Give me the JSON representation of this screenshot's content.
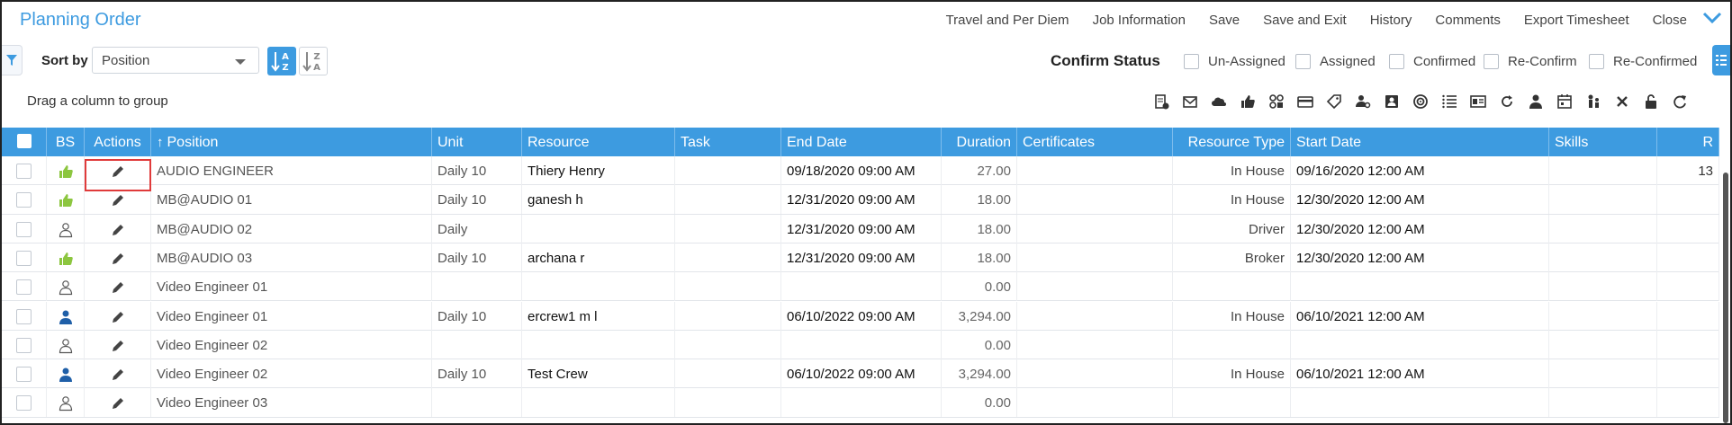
{
  "title": "Planning Order",
  "menu": [
    "Travel and Per Diem",
    "Job Information",
    "Save",
    "Save and Exit",
    "History",
    "Comments",
    "Export Timesheet",
    "Close"
  ],
  "sort": {
    "label": "Sort by",
    "value": "Position"
  },
  "confirm_status": {
    "label": "Confirm Status",
    "options": [
      "Un-Assigned",
      "Assigned",
      "Confirmed",
      "Re-Confirm",
      "Re-Confirmed"
    ]
  },
  "group_hint": "Drag a column to group",
  "toolbar_icons": [
    "document-money-icon",
    "mail-icon",
    "cloud-icon",
    "thumbs-up-icon",
    "link-icon",
    "credit-card-icon",
    "tag-icon",
    "user-settings-icon",
    "contact-card-icon",
    "target-icon",
    "list-icon",
    "report-icon",
    "refresh-circle-icon",
    "person-icon",
    "calendar-icon",
    "people-icon",
    "close-icon",
    "unlock-icon",
    "reload-icon"
  ],
  "columns": {
    "bs": "BS",
    "actions": "Actions",
    "position": "Position",
    "unit": "Unit",
    "resource": "Resource",
    "task": "Task",
    "end_date": "End Date",
    "duration": "Duration",
    "certificates": "Certificates",
    "resource_type": "Resource Type",
    "start_date": "Start Date",
    "skills": "Skills",
    "last": "R"
  },
  "rows": [
    {
      "bs": "thumbs-up-icon",
      "position": "AUDIO ENGINEER",
      "unit": "Daily 10",
      "resource": "Thiery Henry",
      "task": "",
      "end_date": "09/18/2020 09:00 AM",
      "duration": "27.00",
      "certificates": "",
      "resource_type": "In House",
      "start_date": "09/16/2020 12:00 AM",
      "skills": "",
      "last": "13"
    },
    {
      "bs": "thumbs-up-icon",
      "position": "MB@AUDIO 01",
      "unit": "Daily 10",
      "resource": "ganesh h",
      "task": "",
      "end_date": "12/31/2020 09:00 AM",
      "duration": "18.00",
      "certificates": "",
      "resource_type": "In House",
      "start_date": "12/30/2020 12:00 AM",
      "skills": "",
      "last": ""
    },
    {
      "bs": "person-outline-icon",
      "position": "MB@AUDIO 02",
      "unit": "Daily",
      "resource": "",
      "task": "",
      "end_date": "12/31/2020 09:00 AM",
      "duration": "18.00",
      "certificates": "",
      "resource_type": "Driver",
      "start_date": "12/30/2020 12:00 AM",
      "skills": "",
      "last": ""
    },
    {
      "bs": "thumbs-up-icon",
      "position": "MB@AUDIO 03",
      "unit": "Daily 10",
      "resource": "archana r",
      "task": "",
      "end_date": "12/31/2020 09:00 AM",
      "duration": "18.00",
      "certificates": "",
      "resource_type": "Broker",
      "start_date": "12/30/2020 12:00 AM",
      "skills": "",
      "last": ""
    },
    {
      "bs": "person-outline-icon",
      "position": "Video Engineer 01",
      "unit": "",
      "resource": "",
      "task": "",
      "end_date": "",
      "duration": "0.00",
      "certificates": "",
      "resource_type": "",
      "start_date": "",
      "skills": "",
      "last": ""
    },
    {
      "bs": "person-filled-icon",
      "position": "Video Engineer 01",
      "unit": "Daily 10",
      "resource": "ercrew1 m l",
      "task": "",
      "end_date": "06/10/2022 09:00 AM",
      "duration": "3,294.00",
      "certificates": "",
      "resource_type": "In House",
      "start_date": "06/10/2021 12:00 AM",
      "skills": "",
      "last": ""
    },
    {
      "bs": "person-outline-icon",
      "position": "Video Engineer 02",
      "unit": "",
      "resource": "",
      "task": "",
      "end_date": "",
      "duration": "0.00",
      "certificates": "",
      "resource_type": "",
      "start_date": "",
      "skills": "",
      "last": ""
    },
    {
      "bs": "person-filled-icon",
      "position": "Video Engineer 02",
      "unit": "Daily 10",
      "resource": "Test Crew",
      "task": "",
      "end_date": "06/10/2022 09:00 AM",
      "duration": "3,294.00",
      "certificates": "",
      "resource_type": "In House",
      "start_date": "06/10/2021 12:00 AM",
      "skills": "",
      "last": ""
    },
    {
      "bs": "person-outline-icon",
      "position": "Video Engineer 03",
      "unit": "",
      "resource": "",
      "task": "",
      "end_date": "",
      "duration": "0.00",
      "certificates": "",
      "resource_type": "",
      "start_date": "",
      "skills": "",
      "last": ""
    }
  ],
  "colors": {
    "accent": "#3d9be0",
    "thumbs_up": "#8cc63f",
    "person_filled": "#1f5fa8",
    "highlight": "#e03b3b"
  }
}
